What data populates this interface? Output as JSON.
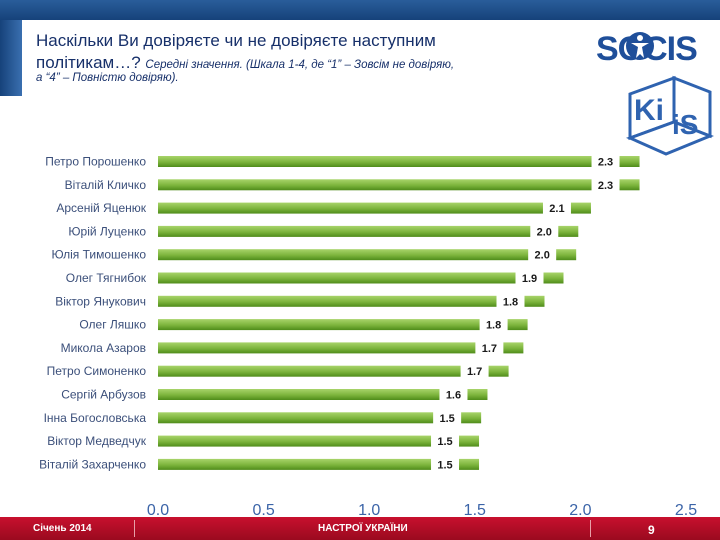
{
  "header": {
    "title": "Наскільки Ви довіряєте чи не довіряєте наступним",
    "title_line2": "політикам…?",
    "subtitle_part1": "Середні значення. (Шкала 1-4, де “1” – Зовсім не довіряю,",
    "subtitle_part2": "а “4” – Повністю довіряю)."
  },
  "logos": {
    "socis": "SOCIS",
    "kiis_top": "Ki",
    "kiis_bottom": "iS"
  },
  "footer": {
    "date": "Січень 2014",
    "center": "НАСТРОЇ УКРАЇНИ",
    "page": "9"
  },
  "colors": {
    "bar_light": "#9ccc5a",
    "bar_dark": "#4f8c1a",
    "axis_text": "#3b64a8",
    "label_text": "#3b4f7a"
  },
  "chart_data": {
    "type": "bar",
    "orientation": "horizontal",
    "title": "Наскільки Ви довіряєте чи не довіряєте наступним політикам…?",
    "xlim": [
      0.0,
      2.5
    ],
    "xticks": [
      "0.0",
      "0.5",
      "1.0",
      "1.5",
      "2.0",
      "2.5"
    ],
    "categories": [
      "Петро Порошенко",
      "Віталій Кличко",
      "Арсеній Яценюк",
      "Юрій Луценко",
      "Юлія Тимошенко",
      "Олег Тягнибок",
      "Віктор Янукович",
      "Олег Ляшко",
      "Микола Азаров",
      "Петро Симоненко",
      "Сергій Арбузов",
      "Інна Богословська",
      "Віктор Медведчук",
      "Віталій Захарченко"
    ],
    "values": [
      2.28,
      2.28,
      2.05,
      1.99,
      1.98,
      1.92,
      1.83,
      1.75,
      1.73,
      1.66,
      1.56,
      1.53,
      1.52,
      1.52
    ],
    "value_labels": [
      "2.3",
      "2.3",
      "2.1",
      "2.0",
      "2.0",
      "1.9",
      "1.8",
      "1.8",
      "1.7",
      "1.7",
      "1.6",
      "1.5",
      "1.5",
      "1.5"
    ]
  }
}
